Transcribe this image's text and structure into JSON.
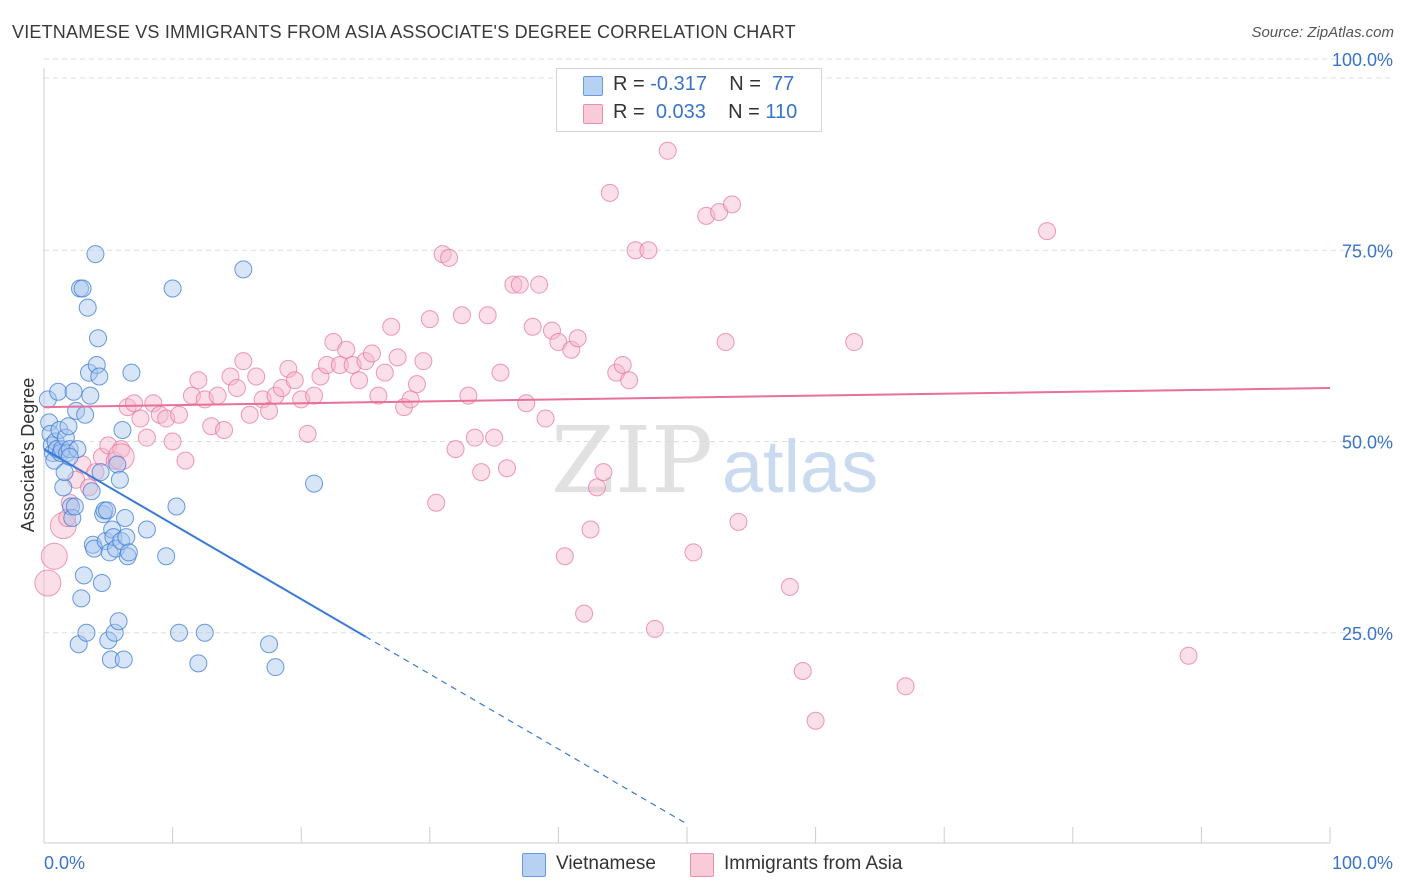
{
  "title": "VIETNAMESE VS IMMIGRANTS FROM ASIA ASSOCIATE'S DEGREE CORRELATION CHART",
  "source": "Source: ZipAtlas.com",
  "watermark": {
    "zip": "ZIP",
    "atlas": "atlas"
  },
  "legend": {
    "series1": {
      "r_label": "R = ",
      "r_value": "-0.317",
      "n_label": "N = ",
      "n_value": "77"
    },
    "series2": {
      "r_label": "R = ",
      "r_value": "0.033",
      "n_label": "N = ",
      "n_value": "110"
    }
  },
  "colors": {
    "blue": "#3a7bd5",
    "blue_fill": "#a9c6ee",
    "pink": "#e8709a",
    "pink_fill": "#f5b9cc",
    "axis_text": "#3a74c8",
    "grid": "#dddddd"
  },
  "chart_data": {
    "type": "scatter",
    "title": "VIETNAMESE VS IMMIGRANTS FROM ASIA ASSOCIATE'S DEGREE CORRELATION CHART",
    "xlabel": "",
    "ylabel": "Associate's Degree",
    "xlim": [
      0,
      100
    ],
    "ylim": [
      0,
      100
    ],
    "x_tick_labels": [
      "0.0%",
      "100.0%"
    ],
    "y_ticks": [
      {
        "value": 25,
        "label": "25.0%"
      },
      {
        "value": 50,
        "label": "50.0%"
      },
      {
        "value": 75,
        "label": "75.0%"
      },
      {
        "value": 100,
        "label": "100.0%"
      }
    ],
    "grid": true,
    "series": [
      {
        "name": "Vietnamese",
        "color": "#3a7bd5",
        "r": -0.317,
        "n": 77,
        "trend": {
          "x0": 0,
          "y0": 49,
          "x_solid_end": 25,
          "x1": 50,
          "y1": 0
        },
        "points": [
          [
            0.3,
            55.5
          ],
          [
            0.4,
            52.5
          ],
          [
            0.5,
            51.0
          ],
          [
            0.6,
            49.5
          ],
          [
            0.7,
            48.5
          ],
          [
            0.8,
            47.5
          ],
          [
            0.9,
            50.0
          ],
          [
            1.0,
            49.0
          ],
          [
            1.1,
            56.5
          ],
          [
            1.2,
            51.5
          ],
          [
            1.3,
            48.5
          ],
          [
            1.4,
            49.0
          ],
          [
            1.5,
            44.0
          ],
          [
            1.6,
            46.0
          ],
          [
            1.7,
            50.5
          ],
          [
            1.8,
            48.5
          ],
          [
            1.9,
            52.0
          ],
          [
            2.0,
            49.0
          ],
          [
            2.1,
            41.5
          ],
          [
            2.2,
            40.0
          ],
          [
            2.3,
            56.5
          ],
          [
            2.4,
            41.5
          ],
          [
            2.5,
            54.0
          ],
          [
            2.6,
            49.0
          ],
          [
            2.7,
            23.5
          ],
          [
            2.8,
            70.0
          ],
          [
            2.9,
            29.5
          ],
          [
            3.0,
            70.0
          ],
          [
            3.1,
            32.5
          ],
          [
            3.2,
            53.5
          ],
          [
            3.3,
            25.0
          ],
          [
            3.4,
            67.5
          ],
          [
            3.5,
            59.0
          ],
          [
            3.6,
            56.0
          ],
          [
            3.7,
            43.5
          ],
          [
            3.8,
            36.5
          ],
          [
            3.9,
            36.0
          ],
          [
            4.0,
            74.5
          ],
          [
            4.1,
            60.0
          ],
          [
            4.2,
            63.5
          ],
          [
            4.3,
            58.5
          ],
          [
            4.4,
            46.0
          ],
          [
            4.5,
            31.5
          ],
          [
            4.6,
            40.5
          ],
          [
            4.7,
            41.0
          ],
          [
            4.8,
            37.0
          ],
          [
            4.9,
            41.0
          ],
          [
            5.0,
            24.0
          ],
          [
            5.1,
            35.5
          ],
          [
            5.2,
            21.5
          ],
          [
            5.3,
            38.5
          ],
          [
            5.4,
            37.5
          ],
          [
            5.5,
            25.0
          ],
          [
            5.6,
            36.0
          ],
          [
            5.7,
            47.0
          ],
          [
            5.8,
            26.5
          ],
          [
            5.9,
            45.0
          ],
          [
            6.0,
            37.0
          ],
          [
            6.1,
            51.5
          ],
          [
            6.2,
            21.5
          ],
          [
            6.3,
            40.0
          ],
          [
            6.4,
            37.5
          ],
          [
            6.5,
            35.0
          ],
          [
            6.6,
            35.5
          ],
          [
            6.8,
            59.0
          ],
          [
            8.0,
            38.5
          ],
          [
            9.5,
            35.0
          ],
          [
            10.0,
            70.0
          ],
          [
            10.3,
            41.5
          ],
          [
            10.5,
            25.0
          ],
          [
            12.0,
            21.0
          ],
          [
            12.5,
            25.0
          ],
          [
            15.5,
            72.5
          ],
          [
            17.5,
            23.5
          ],
          [
            18.0,
            20.5
          ],
          [
            21.0,
            44.5
          ],
          [
            2.0,
            48.0
          ]
        ]
      },
      {
        "name": "Immigrants from Asia",
        "color": "#e8709a",
        "r": 0.033,
        "n": 110,
        "trend": {
          "x0": 0,
          "y0": 54.5,
          "x1": 100,
          "y1": 57.0
        },
        "points": [
          [
            0.3,
            31.5
          ],
          [
            0.8,
            35.0
          ],
          [
            1.5,
            39.0
          ],
          [
            1.8,
            40.0
          ],
          [
            2.0,
            42.0
          ],
          [
            2.5,
            45.0
          ],
          [
            3.0,
            47.0
          ],
          [
            3.5,
            44.0
          ],
          [
            4.0,
            46.0
          ],
          [
            4.5,
            48.0
          ],
          [
            5.0,
            49.5
          ],
          [
            5.5,
            47.5
          ],
          [
            6.0,
            49.0
          ],
          [
            6.5,
            54.5
          ],
          [
            7.0,
            55.0
          ],
          [
            7.5,
            53.0
          ],
          [
            8.0,
            50.5
          ],
          [
            8.5,
            55.0
          ],
          [
            9.0,
            53.5
          ],
          [
            9.5,
            53.0
          ],
          [
            10.0,
            50.0
          ],
          [
            10.5,
            53.5
          ],
          [
            11.0,
            47.5
          ],
          [
            11.5,
            56.0
          ],
          [
            12.0,
            58.0
          ],
          [
            12.5,
            55.5
          ],
          [
            13.0,
            52.0
          ],
          [
            13.5,
            56.0
          ],
          [
            14.0,
            51.5
          ],
          [
            14.5,
            58.5
          ],
          [
            15.0,
            57.0
          ],
          [
            15.5,
            60.5
          ],
          [
            16.0,
            53.5
          ],
          [
            16.5,
            58.5
          ],
          [
            17.0,
            55.5
          ],
          [
            17.5,
            54.0
          ],
          [
            18.0,
            56.0
          ],
          [
            18.5,
            57.0
          ],
          [
            19.0,
            59.5
          ],
          [
            19.5,
            58.0
          ],
          [
            20.0,
            55.5
          ],
          [
            20.5,
            51.0
          ],
          [
            21.0,
            56.0
          ],
          [
            21.5,
            58.5
          ],
          [
            22.0,
            60.0
          ],
          [
            22.5,
            63.0
          ],
          [
            23.0,
            60.0
          ],
          [
            23.5,
            62.0
          ],
          [
            24.0,
            60.0
          ],
          [
            24.5,
            58.0
          ],
          [
            25.0,
            60.5
          ],
          [
            25.5,
            61.5
          ],
          [
            26.0,
            56.0
          ],
          [
            26.5,
            59.0
          ],
          [
            27.0,
            65.0
          ],
          [
            27.5,
            61.0
          ],
          [
            28.0,
            54.5
          ],
          [
            28.5,
            55.5
          ],
          [
            29.0,
            57.5
          ],
          [
            29.5,
            60.5
          ],
          [
            30.0,
            66.0
          ],
          [
            30.5,
            42.0
          ],
          [
            31.0,
            74.5
          ],
          [
            31.5,
            74.0
          ],
          [
            32.0,
            49.0
          ],
          [
            32.5,
            66.5
          ],
          [
            33.0,
            56.0
          ],
          [
            33.5,
            50.5
          ],
          [
            34.0,
            46.0
          ],
          [
            34.5,
            66.5
          ],
          [
            35.0,
            50.5
          ],
          [
            35.5,
            59.0
          ],
          [
            36.0,
            46.5
          ],
          [
            36.5,
            70.5
          ],
          [
            37.0,
            70.5
          ],
          [
            37.5,
            55.0
          ],
          [
            38.0,
            65.0
          ],
          [
            38.5,
            70.5
          ],
          [
            39.0,
            53.0
          ],
          [
            39.5,
            64.5
          ],
          [
            40.0,
            63.0
          ],
          [
            40.5,
            35.0
          ],
          [
            41.0,
            62.0
          ],
          [
            41.5,
            63.5
          ],
          [
            42.0,
            27.5
          ],
          [
            42.5,
            38.5
          ],
          [
            43.0,
            44.0
          ],
          [
            43.5,
            46.0
          ],
          [
            44.0,
            82.5
          ],
          [
            44.5,
            59.0
          ],
          [
            45.0,
            60.0
          ],
          [
            45.5,
            58.0
          ],
          [
            46.0,
            75.0
          ],
          [
            47.0,
            75.0
          ],
          [
            47.5,
            25.5
          ],
          [
            48.5,
            88.0
          ],
          [
            50.5,
            35.5
          ],
          [
            51.5,
            79.5
          ],
          [
            52.5,
            80.0
          ],
          [
            53.0,
            63.0
          ],
          [
            53.5,
            81.0
          ],
          [
            54.0,
            39.5
          ],
          [
            58.0,
            31.0
          ],
          [
            59.0,
            20.0
          ],
          [
            60.0,
            13.5
          ],
          [
            63.0,
            63.0
          ],
          [
            67.0,
            18.0
          ],
          [
            78.0,
            77.5
          ],
          [
            89.0,
            22.0
          ],
          [
            6.0,
            48.0
          ]
        ]
      }
    ]
  },
  "bottom_legend": {
    "item1": "Vietnamese",
    "item2": "Immigrants from Asia"
  }
}
